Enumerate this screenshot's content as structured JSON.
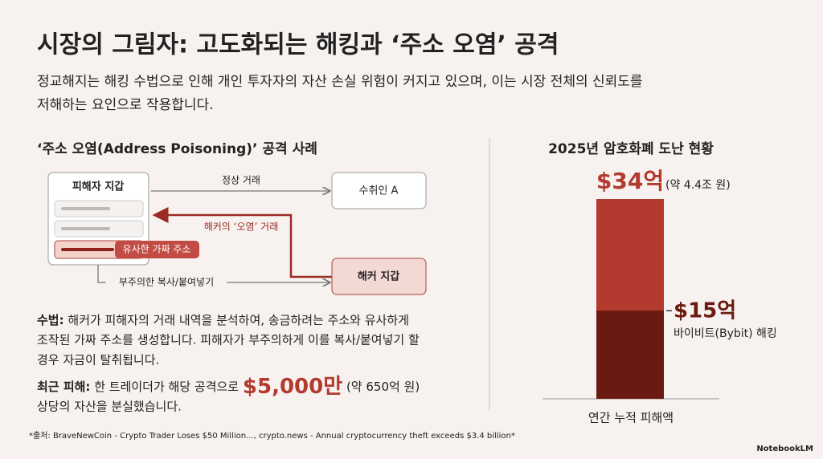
{
  "header": {
    "title": "시장의 그림자: 고도화되는 해킹과 ‘주소 오염’ 공격",
    "subtitle_lines": [
      "정교해지는 해킹 수법으로 인해 개인 투자자의 자산 손실 위험이 커지고 있으며, 이는 시장 전체의 신뢰도를",
      "저해하는 요인으로 작용합니다."
    ]
  },
  "case_study": {
    "heading": "‘주소 오염(Address Poisoning)’ 공격 사례",
    "diagram": {
      "victim_wallet": "피해자 지갑",
      "fake_address": "유사한 가짜 주소",
      "recipient": "수취인 A",
      "hacker_wallet": "해커 지갑",
      "normal_tx": "정상 거래",
      "poisoned_tx": "해커의 ‘오염’ 거래",
      "careless_copy": "부주의한 복사/붙여넣기"
    },
    "method": {
      "label": "수법:",
      "lines": [
        "해커가 피해자의 거래 내역을 분석하여, 송금하려는 주소와 유사하게",
        "조작된 가짜 주소를 생성합니다. 피해자가 부주의하게 이를 복사/붙여넣기 할",
        "경우 자금이 탈취됩니다."
      ]
    },
    "recent": {
      "label": "최근 피해:",
      "text_before": "한 트레이더가 해당 공격으로",
      "amount": "$5,000만",
      "text_after": "(약 650억 원)",
      "line2": "상당의 자산을 분실했습니다."
    }
  },
  "chart_data": {
    "type": "bar",
    "title": "2025년 암호화폐 도난 현황",
    "categories": [
      "연간 누적 피해액"
    ],
    "series": [
      {
        "color": "#b23a2f",
        "values": [
          34
        ],
        "value_labels": [
          "$34억"
        ],
        "annotation": "(약 4.4조 원)"
      },
      {
        "name": "바이비트(Bybit) 해킹",
        "color": "#6a1a10",
        "values": [
          15
        ],
        "value_labels": [
          "$15억"
        ]
      }
    ]
  },
  "footer": {
    "source": "*출처: BraveNewCoin - Crypto Trader Loses $50 Million..., crypto.news - Annual cryptocurrency theft exceeds $3.4 billion*",
    "brand": "NotebookLM"
  }
}
